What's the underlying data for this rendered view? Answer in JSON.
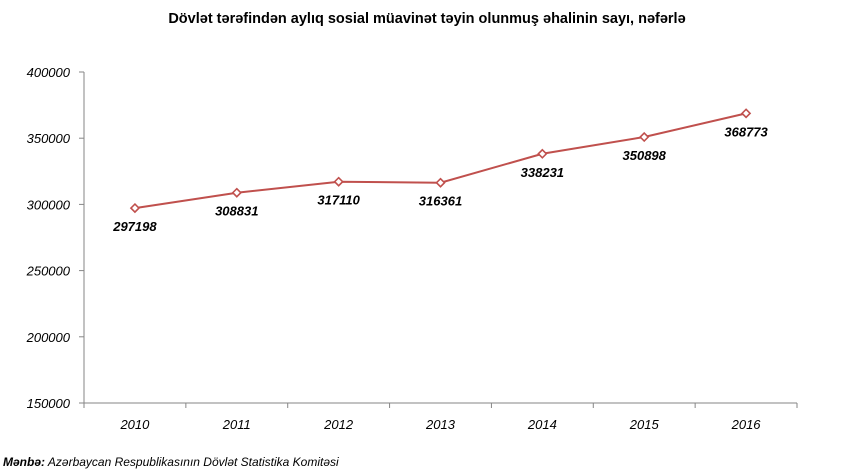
{
  "chart_data": {
    "type": "line",
    "title": "Dövlət tərəfindən aylıq sosial müavinət təyin olunmuş əhalinin sayı, nəfərlə",
    "xlabel": "",
    "ylabel": "",
    "categories": [
      "2010",
      "2011",
      "2012",
      "2013",
      "2014",
      "2015",
      "2016"
    ],
    "series": [
      {
        "values": [
          297198,
          308831,
          317110,
          316361,
          338231,
          350898,
          368773
        ],
        "data_labels": [
          "297198",
          "308831",
          "317110",
          "316361",
          "338231",
          "350898",
          "368773"
        ],
        "color": "#c0504d",
        "marker": "diamond-open"
      }
    ],
    "ylim": [
      150000,
      400000
    ],
    "yticks": [
      "150000",
      "200000",
      "250000",
      "300000",
      "350000",
      "400000"
    ],
    "grid": false,
    "legend": "none"
  },
  "source": {
    "label": "Mənbə:",
    "text": " Azərbaycan Respublikasının Dövlət  Statistika Komitəsi"
  }
}
